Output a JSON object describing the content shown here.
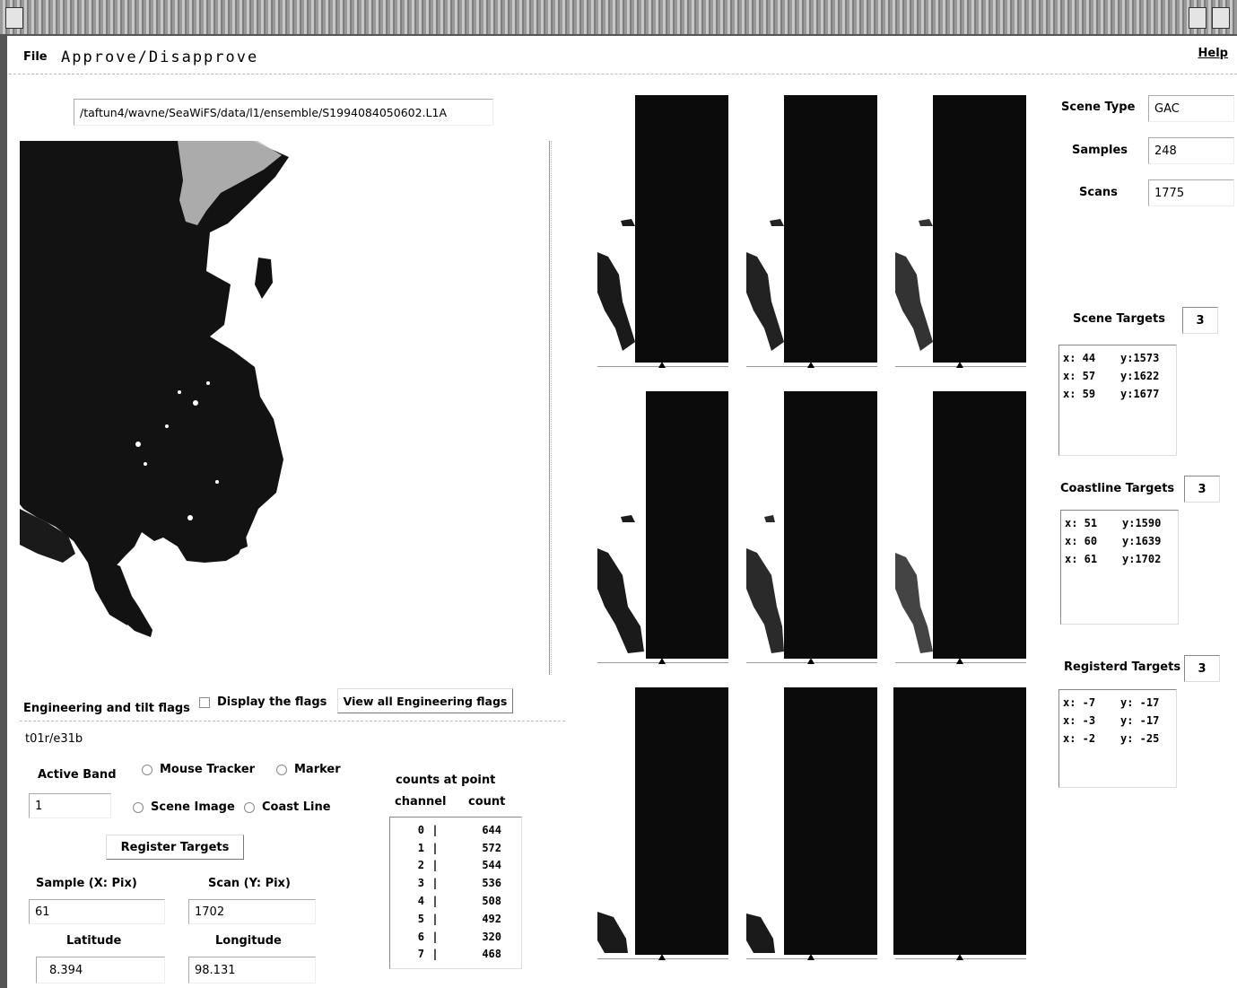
{
  "window": {
    "title": "Approve/Disapprove"
  },
  "menu": {
    "file": "File",
    "help": "Help"
  },
  "file_path": "/taftun4/wavne/SeaWiFS/data/l1/ensemble/S1994084050602.L1A",
  "flags": {
    "label": "Engineering and tilt flags",
    "display_label": "Display the flags",
    "view_all_button": "View all Engineering flags",
    "value": "t01r/e31b"
  },
  "tracker": {
    "active_band_label": "Active Band",
    "active_band_value": "1",
    "mouse_tracker_label": "Mouse Tracker",
    "marker_label": "Marker",
    "scene_image_label": "Scene Image",
    "coast_line_label": "Coast Line",
    "register_button": "Register Targets",
    "sample_label": "Sample (X: Pix)",
    "sample_value": "61",
    "scan_label": "Scan (Y: Pix)",
    "scan_value": "1702",
    "latitude_label": "Latitude",
    "latitude_value": "8.394",
    "longitude_label": "Longitude",
    "longitude_value": "98.131"
  },
  "counts": {
    "title": "counts at point",
    "channel_header": "channel",
    "count_header": "count",
    "rows": [
      {
        "channel": "0",
        "count": "644"
      },
      {
        "channel": "1",
        "count": "572"
      },
      {
        "channel": "2",
        "count": "544"
      },
      {
        "channel": "3",
        "count": "536"
      },
      {
        "channel": "4",
        "count": "508"
      },
      {
        "channel": "5",
        "count": "492"
      },
      {
        "channel": "6",
        "count": "320"
      },
      {
        "channel": "7",
        "count": "468"
      }
    ]
  },
  "scene": {
    "type_label": "Scene Type",
    "type_value": "GAC",
    "samples_label": "Samples",
    "samples_value": "248",
    "scans_label": "Scans",
    "scans_value": "1775"
  },
  "scene_targets": {
    "label": "Scene Targets",
    "count": "3",
    "items": [
      {
        "x": "x: 44",
        "y": "y:1573"
      },
      {
        "x": "x: 57",
        "y": "y:1622"
      },
      {
        "x": "x: 59",
        "y": "y:1677"
      }
    ]
  },
  "coastline_targets": {
    "label": "Coastline Targets",
    "count": "3",
    "items": [
      {
        "x": "x: 51",
        "y": "y:1590"
      },
      {
        "x": "x: 60",
        "y": "y:1639"
      },
      {
        "x": "x: 61",
        "y": "y:1702"
      }
    ]
  },
  "registered_targets": {
    "label": "Registerd Targets",
    "count": "3",
    "items": [
      {
        "x": "x: -7",
        "y": "y: -17"
      },
      {
        "x": "x: -3",
        "y": "y: -17"
      },
      {
        "x": "x: -2",
        "y": "y: -25"
      }
    ]
  }
}
